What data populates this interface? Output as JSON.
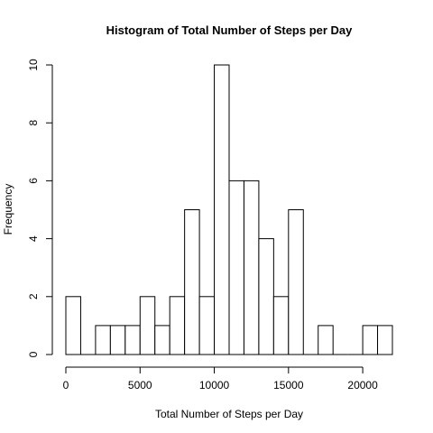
{
  "chart_data": {
    "type": "bar",
    "subtype": "histogram",
    "title": "Histogram of Total Number of Steps per Day",
    "xlabel": "Total Number of Steps per Day",
    "ylabel": "Frequency",
    "bin_width": 1000,
    "bins": [
      {
        "start": 0,
        "end": 1000,
        "count": 2
      },
      {
        "start": 1000,
        "end": 2000,
        "count": 0
      },
      {
        "start": 2000,
        "end": 3000,
        "count": 1
      },
      {
        "start": 3000,
        "end": 4000,
        "count": 1
      },
      {
        "start": 4000,
        "end": 5000,
        "count": 1
      },
      {
        "start": 5000,
        "end": 6000,
        "count": 2
      },
      {
        "start": 6000,
        "end": 7000,
        "count": 1
      },
      {
        "start": 7000,
        "end": 8000,
        "count": 2
      },
      {
        "start": 8000,
        "end": 9000,
        "count": 5
      },
      {
        "start": 9000,
        "end": 10000,
        "count": 2
      },
      {
        "start": 10000,
        "end": 11000,
        "count": 10
      },
      {
        "start": 11000,
        "end": 12000,
        "count": 6
      },
      {
        "start": 12000,
        "end": 13000,
        "count": 6
      },
      {
        "start": 13000,
        "end": 14000,
        "count": 4
      },
      {
        "start": 14000,
        "end": 15000,
        "count": 2
      },
      {
        "start": 15000,
        "end": 16000,
        "count": 5
      },
      {
        "start": 16000,
        "end": 17000,
        "count": 0
      },
      {
        "start": 17000,
        "end": 18000,
        "count": 1
      },
      {
        "start": 18000,
        "end": 19000,
        "count": 0
      },
      {
        "start": 19000,
        "end": 20000,
        "count": 0
      },
      {
        "start": 20000,
        "end": 21000,
        "count": 1
      },
      {
        "start": 21000,
        "end": 22000,
        "count": 1
      }
    ],
    "xlim": [
      0,
      22000
    ],
    "ylim": [
      0,
      10
    ],
    "xticks": [
      0,
      5000,
      10000,
      15000,
      20000
    ],
    "xtick_labels": [
      "0",
      "5000",
      "10000",
      "15000",
      "20000"
    ],
    "yticks": [
      0,
      2,
      4,
      6,
      8,
      10
    ],
    "ytick_labels": [
      "0",
      "2",
      "4",
      "6",
      "8",
      "10"
    ],
    "grid": false,
    "legend": "none",
    "bar_fill": "#ffffff",
    "bar_stroke": "#000000"
  }
}
